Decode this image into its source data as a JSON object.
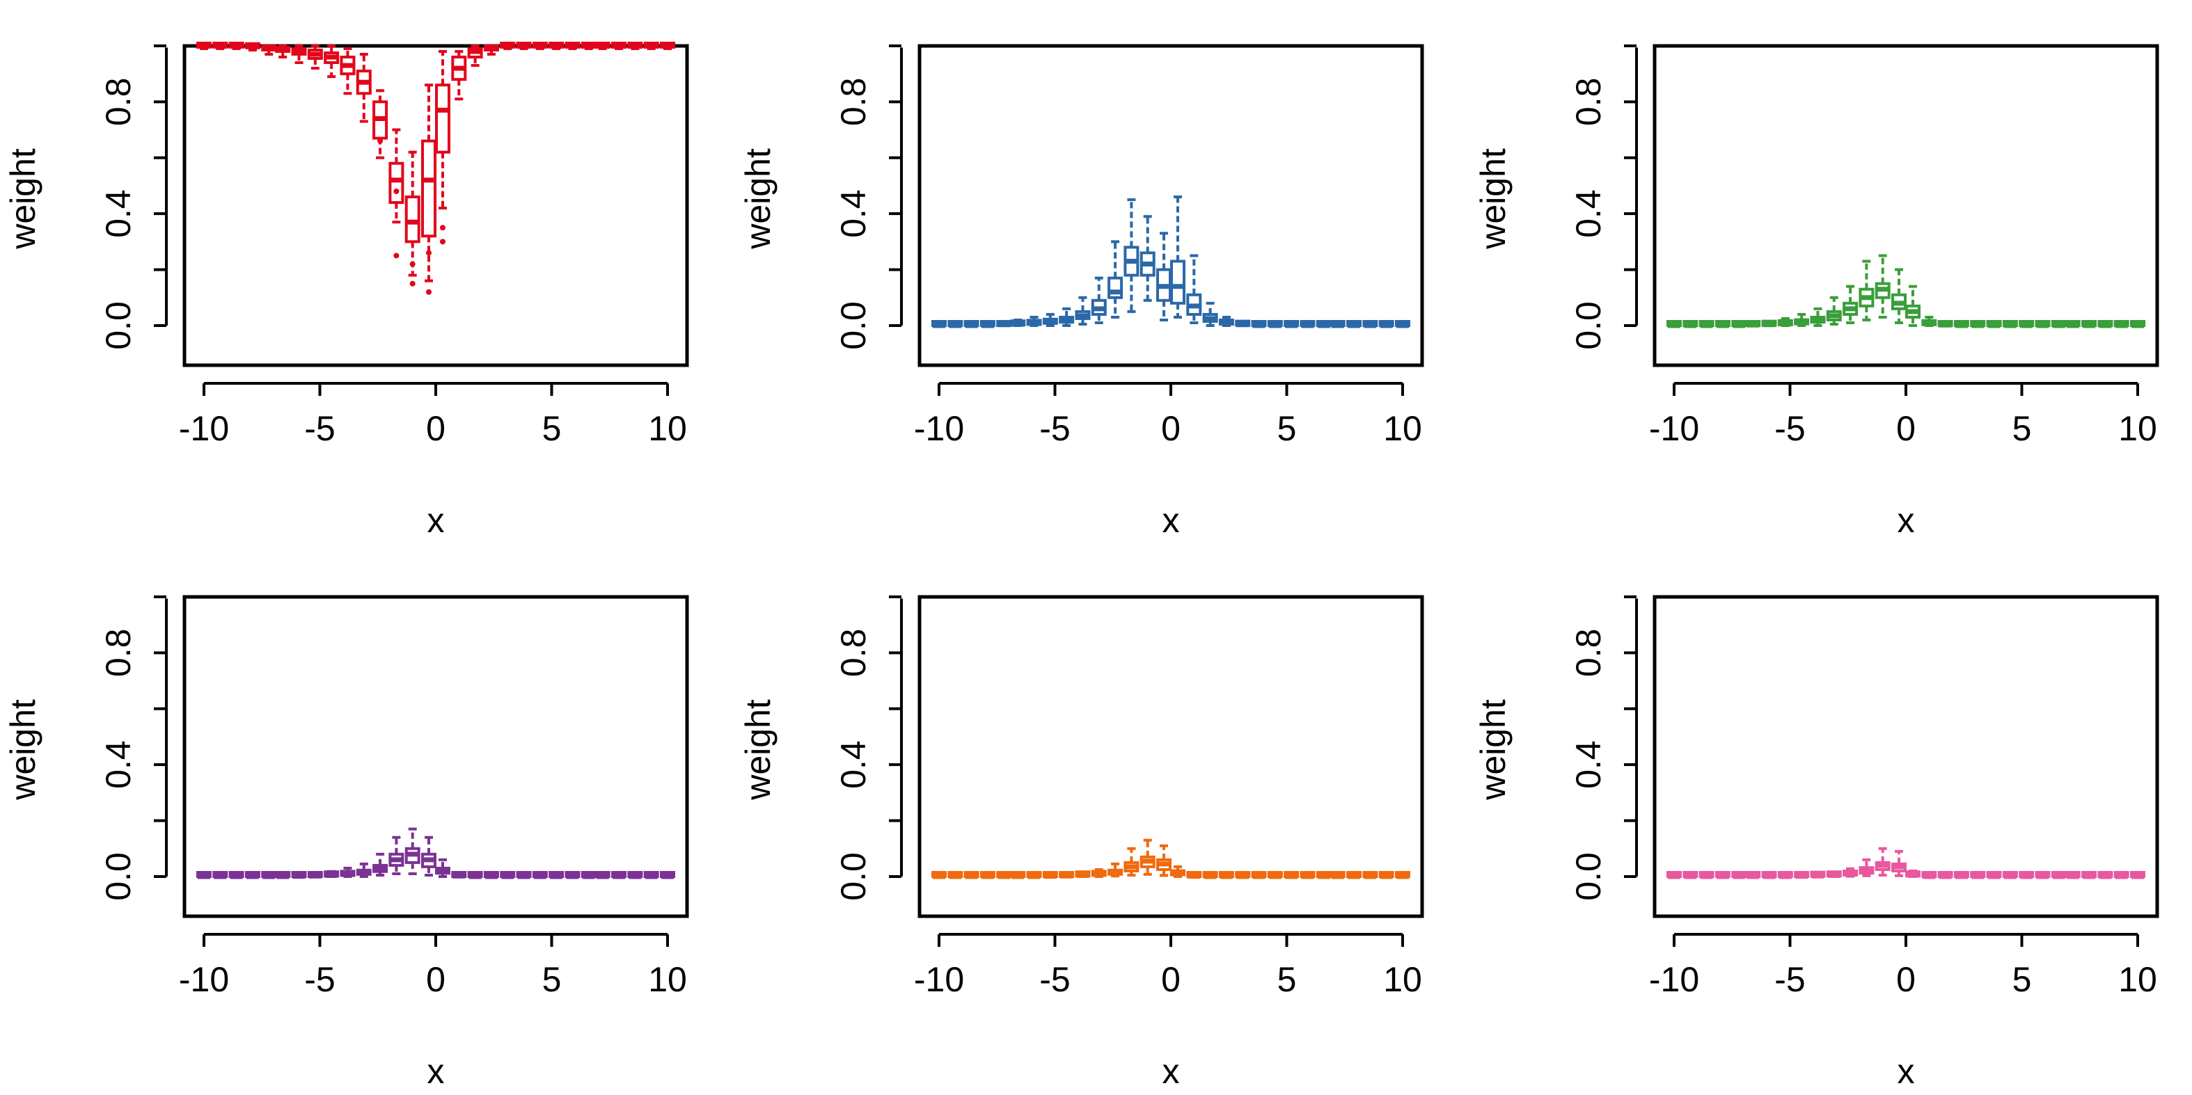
{
  "chart_data": [
    {
      "type": "boxplot",
      "color": "#E3051B",
      "xlabel": "x",
      "ylabel": "weight",
      "xlim": [
        -10,
        10
      ],
      "ylim": [
        -0.1,
        1.0
      ],
      "xticks": [
        "-10",
        "-5",
        "0",
        "5",
        "10"
      ],
      "yticks": [
        "0.0",
        "0.4",
        "0.8"
      ],
      "x": [
        -10,
        -9.3,
        -8.6,
        -7.9,
        -7.2,
        -6.6,
        -5.9,
        -5.2,
        -4.5,
        -3.8,
        -3.1,
        -2.4,
        -1.7,
        -1.0,
        -0.3,
        0.3,
        1.0,
        1.7,
        2.4,
        3.1,
        3.8,
        4.5,
        5.2,
        5.9,
        6.6,
        7.2,
        7.9,
        8.6,
        9.3,
        10
      ],
      "median": [
        1.0,
        1.0,
        1.0,
        1.0,
        0.99,
        0.99,
        0.98,
        0.97,
        0.96,
        0.93,
        0.87,
        0.74,
        0.52,
        0.37,
        0.52,
        0.77,
        0.92,
        0.98,
        0.99,
        1.0,
        1.0,
        1.0,
        1.0,
        1.0,
        1.0,
        1.0,
        1.0,
        1.0,
        1.0,
        1.0
      ],
      "q1": [
        0.995,
        0.995,
        0.995,
        0.993,
        0.985,
        0.98,
        0.97,
        0.955,
        0.94,
        0.9,
        0.83,
        0.67,
        0.44,
        0.3,
        0.32,
        0.62,
        0.88,
        0.96,
        0.985,
        0.995,
        0.995,
        0.995,
        0.995,
        0.995,
        0.995,
        0.995,
        0.995,
        0.995,
        0.995,
        0.995
      ],
      "q3": [
        1.0,
        1.0,
        1.0,
        1.0,
        0.995,
        0.995,
        0.99,
        0.985,
        0.975,
        0.96,
        0.91,
        0.8,
        0.58,
        0.46,
        0.66,
        0.86,
        0.96,
        0.99,
        0.995,
        1.0,
        1.0,
        1.0,
        1.0,
        1.0,
        1.0,
        1.0,
        1.0,
        1.0,
        1.0,
        1.0
      ],
      "lower": [
        0.99,
        0.99,
        0.99,
        0.985,
        0.97,
        0.96,
        0.94,
        0.92,
        0.89,
        0.83,
        0.73,
        0.6,
        0.37,
        0.18,
        0.16,
        0.42,
        0.81,
        0.93,
        0.97,
        0.99,
        0.99,
        0.99,
        0.99,
        0.99,
        0.99,
        0.99,
        0.99,
        0.99,
        0.99,
        0.99
      ],
      "upper": [
        1.0,
        1.0,
        1.0,
        1.0,
        1.0,
        1.0,
        1.0,
        1.0,
        1.0,
        0.99,
        0.97,
        0.84,
        0.7,
        0.62,
        0.86,
        0.98,
        0.98,
        1.0,
        1.0,
        1.0,
        1.0,
        1.0,
        1.0,
        1.0,
        1.0,
        1.0,
        1.0,
        1.0,
        1.0,
        1.0
      ],
      "outliers": [
        {
          "x": -1.7,
          "y": 0.25
        },
        {
          "x": -1.7,
          "y": 0.48
        },
        {
          "x": -1.0,
          "y": 0.15
        },
        {
          "x": -1.0,
          "y": 0.22
        },
        {
          "x": -0.3,
          "y": 0.12
        },
        {
          "x": -0.3,
          "y": 0.26
        },
        {
          "x": 0.3,
          "y": 0.3
        },
        {
          "x": 0.3,
          "y": 0.35
        },
        {
          "x": -2.4,
          "y": 0.66
        }
      ]
    },
    {
      "type": "boxplot",
      "color": "#2B68A8",
      "xlabel": "x",
      "ylabel": "weight",
      "xlim": [
        -10,
        10
      ],
      "ylim": [
        -0.1,
        1.0
      ],
      "xticks": [
        "-10",
        "-5",
        "0",
        "5",
        "10"
      ],
      "yticks": [
        "0.0",
        "0.4",
        "0.8"
      ],
      "x": [
        -10,
        -9.3,
        -8.6,
        -7.9,
        -7.2,
        -6.6,
        -5.9,
        -5.2,
        -4.5,
        -3.8,
        -3.1,
        -2.4,
        -1.7,
        -1.0,
        -0.3,
        0.3,
        1.0,
        1.7,
        2.4,
        3.1,
        3.8,
        4.5,
        5.2,
        5.9,
        6.6,
        7.2,
        7.9,
        8.6,
        9.3,
        10
      ],
      "median": [
        0.0,
        0.0,
        0.0,
        0.0,
        0.003,
        0.005,
        0.008,
        0.013,
        0.02,
        0.035,
        0.06,
        0.12,
        0.23,
        0.22,
        0.14,
        0.14,
        0.07,
        0.025,
        0.01,
        0.003,
        0.0,
        0.0,
        0.0,
        0.0,
        0.0,
        0.0,
        0.0,
        0.0,
        0.0,
        0.0
      ],
      "q1": [
        0.0,
        0.0,
        0.0,
        0.0,
        0.0,
        0.002,
        0.004,
        0.008,
        0.012,
        0.025,
        0.04,
        0.1,
        0.18,
        0.18,
        0.09,
        0.08,
        0.04,
        0.015,
        0.005,
        0.001,
        0.0,
        0.0,
        0.0,
        0.0,
        0.0,
        0.0,
        0.0,
        0.0,
        0.0,
        0.0
      ],
      "q3": [
        0.002,
        0.002,
        0.002,
        0.003,
        0.006,
        0.01,
        0.015,
        0.022,
        0.03,
        0.05,
        0.09,
        0.17,
        0.28,
        0.26,
        0.2,
        0.23,
        0.11,
        0.04,
        0.015,
        0.005,
        0.002,
        0.002,
        0.002,
        0.002,
        0.002,
        0.002,
        0.002,
        0.002,
        0.002,
        0.002
      ],
      "lower": [
        0.0,
        0.0,
        0.0,
        0.0,
        0.0,
        0.0,
        0.0,
        0.0,
        0.0,
        0.005,
        0.01,
        0.03,
        0.05,
        0.09,
        0.02,
        0.03,
        0.01,
        0.0,
        0.0,
        0.0,
        0.0,
        0.0,
        0.0,
        0.0,
        0.0,
        0.0,
        0.0,
        0.0,
        0.0,
        0.0
      ],
      "upper": [
        0.005,
        0.005,
        0.006,
        0.008,
        0.015,
        0.02,
        0.03,
        0.04,
        0.06,
        0.1,
        0.17,
        0.3,
        0.45,
        0.39,
        0.33,
        0.46,
        0.25,
        0.08,
        0.03,
        0.01,
        0.005,
        0.005,
        0.005,
        0.005,
        0.005,
        0.005,
        0.005,
        0.005,
        0.005,
        0.005
      ],
      "outliers": []
    },
    {
      "type": "boxplot",
      "color": "#3A9E3A",
      "xlabel": "x",
      "ylabel": "weight",
      "xlim": [
        -10,
        10
      ],
      "ylim": [
        -0.1,
        1.0
      ],
      "xticks": [
        "-10",
        "-5",
        "0",
        "5",
        "10"
      ],
      "yticks": [
        "0.0",
        "0.4",
        "0.8"
      ],
      "x": [
        -10,
        -9.3,
        -8.6,
        -7.9,
        -7.2,
        -6.6,
        -5.9,
        -5.2,
        -4.5,
        -3.8,
        -3.1,
        -2.4,
        -1.7,
        -1.0,
        -0.3,
        0.3,
        1.0,
        1.7,
        2.4,
        3.1,
        3.8,
        4.5,
        5.2,
        5.9,
        6.6,
        7.2,
        7.9,
        8.6,
        9.3,
        10
      ],
      "median": [
        0.0,
        0.0,
        0.0,
        0.0,
        0.0,
        0.002,
        0.003,
        0.006,
        0.01,
        0.02,
        0.035,
        0.06,
        0.1,
        0.13,
        0.08,
        0.05,
        0.007,
        0.002,
        0.0,
        0.0,
        0.0,
        0.0,
        0.0,
        0.0,
        0.0,
        0.0,
        0.0,
        0.0,
        0.0,
        0.0
      ],
      "q1": [
        0.0,
        0.0,
        0.0,
        0.0,
        0.0,
        0.0,
        0.001,
        0.003,
        0.006,
        0.012,
        0.02,
        0.04,
        0.07,
        0.1,
        0.06,
        0.03,
        0.003,
        0.0,
        0.0,
        0.0,
        0.0,
        0.0,
        0.0,
        0.0,
        0.0,
        0.0,
        0.0,
        0.0,
        0.0,
        0.0
      ],
      "q3": [
        0.002,
        0.002,
        0.002,
        0.002,
        0.003,
        0.004,
        0.006,
        0.01,
        0.015,
        0.03,
        0.05,
        0.08,
        0.13,
        0.15,
        0.11,
        0.07,
        0.012,
        0.004,
        0.002,
        0.002,
        0.002,
        0.002,
        0.002,
        0.002,
        0.002,
        0.002,
        0.002,
        0.002,
        0.002,
        0.002
      ],
      "lower": [
        0.0,
        0.0,
        0.0,
        0.0,
        0.0,
        0.0,
        0.0,
        0.0,
        0.0,
        0.0,
        0.005,
        0.01,
        0.02,
        0.03,
        0.01,
        0.0,
        0.0,
        0.0,
        0.0,
        0.0,
        0.0,
        0.0,
        0.0,
        0.0,
        0.0,
        0.0,
        0.0,
        0.0,
        0.0,
        0.0
      ],
      "upper": [
        0.004,
        0.004,
        0.004,
        0.005,
        0.007,
        0.01,
        0.015,
        0.025,
        0.04,
        0.06,
        0.1,
        0.14,
        0.23,
        0.25,
        0.2,
        0.14,
        0.03,
        0.008,
        0.004,
        0.004,
        0.004,
        0.004,
        0.004,
        0.004,
        0.004,
        0.004,
        0.004,
        0.004,
        0.004,
        0.004
      ],
      "outliers": []
    },
    {
      "type": "boxplot",
      "color": "#7B3294",
      "xlabel": "x",
      "ylabel": "weight",
      "xlim": [
        -10,
        10
      ],
      "ylim": [
        -0.1,
        1.0
      ],
      "xticks": [
        "-10",
        "-5",
        "0",
        "5",
        "10"
      ],
      "yticks": [
        "0.0",
        "0.4",
        "0.8"
      ],
      "x": [
        -10,
        -9.3,
        -8.6,
        -7.9,
        -7.2,
        -6.6,
        -5.9,
        -5.2,
        -4.5,
        -3.8,
        -3.1,
        -2.4,
        -1.7,
        -1.0,
        -0.3,
        0.3,
        1.0,
        1.7,
        2.4,
        3.1,
        3.8,
        4.5,
        5.2,
        5.9,
        6.6,
        7.2,
        7.9,
        8.6,
        9.3,
        10
      ],
      "median": [
        0.0,
        0.0,
        0.0,
        0.0,
        0.0,
        0.0,
        0.001,
        0.002,
        0.004,
        0.008,
        0.015,
        0.03,
        0.06,
        0.08,
        0.06,
        0.02,
        0.002,
        0.0,
        0.0,
        0.0,
        0.0,
        0.0,
        0.0,
        0.0,
        0.0,
        0.0,
        0.0,
        0.0,
        0.0,
        0.0
      ],
      "q1": [
        0.0,
        0.0,
        0.0,
        0.0,
        0.0,
        0.0,
        0.0,
        0.0,
        0.002,
        0.004,
        0.008,
        0.018,
        0.04,
        0.05,
        0.035,
        0.012,
        0.0,
        0.0,
        0.0,
        0.0,
        0.0,
        0.0,
        0.0,
        0.0,
        0.0,
        0.0,
        0.0,
        0.0,
        0.0,
        0.0
      ],
      "q3": [
        0.001,
        0.001,
        0.001,
        0.001,
        0.001,
        0.002,
        0.003,
        0.005,
        0.007,
        0.013,
        0.022,
        0.04,
        0.08,
        0.1,
        0.08,
        0.03,
        0.004,
        0.001,
        0.001,
        0.001,
        0.001,
        0.001,
        0.001,
        0.001,
        0.001,
        0.001,
        0.001,
        0.001,
        0.001,
        0.001
      ],
      "lower": [
        0.0,
        0.0,
        0.0,
        0.0,
        0.0,
        0.0,
        0.0,
        0.0,
        0.0,
        0.0,
        0.0,
        0.005,
        0.01,
        0.01,
        0.005,
        0.0,
        0.0,
        0.0,
        0.0,
        0.0,
        0.0,
        0.0,
        0.0,
        0.0,
        0.0,
        0.0,
        0.0,
        0.0,
        0.0,
        0.0
      ],
      "upper": [
        0.003,
        0.003,
        0.003,
        0.003,
        0.004,
        0.005,
        0.008,
        0.012,
        0.018,
        0.03,
        0.045,
        0.08,
        0.14,
        0.17,
        0.14,
        0.06,
        0.01,
        0.003,
        0.003,
        0.003,
        0.003,
        0.003,
        0.003,
        0.003,
        0.003,
        0.003,
        0.003,
        0.003,
        0.003,
        0.003
      ],
      "outliers": []
    },
    {
      "type": "boxplot",
      "color": "#F06A0E",
      "xlabel": "x",
      "ylabel": "weight",
      "xlim": [
        -10,
        10
      ],
      "ylim": [
        -0.1,
        1.0
      ],
      "xticks": [
        "-10",
        "-5",
        "0",
        "5",
        "10"
      ],
      "yticks": [
        "0.0",
        "0.4",
        "0.8"
      ],
      "x": [
        -10,
        -9.3,
        -8.6,
        -7.9,
        -7.2,
        -6.6,
        -5.9,
        -5.2,
        -4.5,
        -3.8,
        -3.1,
        -2.4,
        -1.7,
        -1.0,
        -0.3,
        0.3,
        1.0,
        1.7,
        2.4,
        3.1,
        3.8,
        4.5,
        5.2,
        5.9,
        6.6,
        7.2,
        7.9,
        8.6,
        9.3,
        10
      ],
      "median": [
        0.0,
        0.0,
        0.0,
        0.0,
        0.0,
        0.0,
        0.0,
        0.001,
        0.002,
        0.004,
        0.008,
        0.015,
        0.035,
        0.055,
        0.045,
        0.012,
        0.001,
        0.0,
        0.0,
        0.0,
        0.0,
        0.0,
        0.0,
        0.0,
        0.0,
        0.0,
        0.0,
        0.0,
        0.0,
        0.0
      ],
      "q1": [
        0.0,
        0.0,
        0.0,
        0.0,
        0.0,
        0.0,
        0.0,
        0.0,
        0.0,
        0.002,
        0.004,
        0.008,
        0.02,
        0.035,
        0.025,
        0.006,
        0.0,
        0.0,
        0.0,
        0.0,
        0.0,
        0.0,
        0.0,
        0.0,
        0.0,
        0.0,
        0.0,
        0.0,
        0.0,
        0.0
      ],
      "q3": [
        0.001,
        0.001,
        0.001,
        0.001,
        0.001,
        0.001,
        0.002,
        0.003,
        0.004,
        0.007,
        0.012,
        0.022,
        0.05,
        0.07,
        0.06,
        0.02,
        0.003,
        0.001,
        0.001,
        0.001,
        0.001,
        0.001,
        0.001,
        0.001,
        0.001,
        0.001,
        0.001,
        0.001,
        0.001,
        0.001
      ],
      "lower": [
        0.0,
        0.0,
        0.0,
        0.0,
        0.0,
        0.0,
        0.0,
        0.0,
        0.0,
        0.0,
        0.0,
        0.002,
        0.005,
        0.008,
        0.004,
        0.0,
        0.0,
        0.0,
        0.0,
        0.0,
        0.0,
        0.0,
        0.0,
        0.0,
        0.0,
        0.0,
        0.0,
        0.0,
        0.0,
        0.0
      ],
      "upper": [
        0.002,
        0.002,
        0.002,
        0.002,
        0.003,
        0.003,
        0.005,
        0.007,
        0.01,
        0.016,
        0.025,
        0.045,
        0.1,
        0.13,
        0.11,
        0.035,
        0.006,
        0.002,
        0.002,
        0.002,
        0.002,
        0.002,
        0.002,
        0.002,
        0.002,
        0.002,
        0.002,
        0.002,
        0.002,
        0.002
      ],
      "outliers": []
    },
    {
      "type": "boxplot",
      "color": "#E8589F",
      "xlabel": "x",
      "ylabel": "weight",
      "xlim": [
        -10,
        10
      ],
      "ylim": [
        -0.1,
        1.0
      ],
      "xticks": [
        "-10",
        "-5",
        "0",
        "5",
        "10"
      ],
      "yticks": [
        "0.0",
        "0.4",
        "0.8"
      ],
      "x": [
        -10,
        -9.3,
        -8.6,
        -7.9,
        -7.2,
        -6.6,
        -5.9,
        -5.2,
        -4.5,
        -3.8,
        -3.1,
        -2.4,
        -1.7,
        -1.0,
        -0.3,
        0.3,
        1.0,
        1.7,
        2.4,
        3.1,
        3.8,
        4.5,
        5.2,
        5.9,
        6.6,
        7.2,
        7.9,
        8.6,
        9.3,
        10
      ],
      "median": [
        0.0,
        0.0,
        0.0,
        0.0,
        0.0,
        0.0,
        0.0,
        0.0,
        0.001,
        0.002,
        0.004,
        0.01,
        0.022,
        0.04,
        0.035,
        0.005,
        0.0,
        0.0,
        0.0,
        0.0,
        0.0,
        0.0,
        0.0,
        0.0,
        0.0,
        0.0,
        0.0,
        0.0,
        0.0,
        0.0
      ],
      "q1": [
        0.0,
        0.0,
        0.0,
        0.0,
        0.0,
        0.0,
        0.0,
        0.0,
        0.0,
        0.001,
        0.002,
        0.005,
        0.012,
        0.025,
        0.02,
        0.002,
        0.0,
        0.0,
        0.0,
        0.0,
        0.0,
        0.0,
        0.0,
        0.0,
        0.0,
        0.0,
        0.0,
        0.0,
        0.0,
        0.0
      ],
      "q3": [
        0.001,
        0.001,
        0.001,
        0.001,
        0.001,
        0.001,
        0.001,
        0.002,
        0.003,
        0.004,
        0.007,
        0.015,
        0.032,
        0.05,
        0.045,
        0.01,
        0.002,
        0.001,
        0.001,
        0.001,
        0.001,
        0.001,
        0.001,
        0.001,
        0.001,
        0.001,
        0.001,
        0.001,
        0.001,
        0.001
      ],
      "lower": [
        0.0,
        0.0,
        0.0,
        0.0,
        0.0,
        0.0,
        0.0,
        0.0,
        0.0,
        0.0,
        0.0,
        0.001,
        0.003,
        0.005,
        0.003,
        0.0,
        0.0,
        0.0,
        0.0,
        0.0,
        0.0,
        0.0,
        0.0,
        0.0,
        0.0,
        0.0,
        0.0,
        0.0,
        0.0,
        0.0
      ],
      "upper": [
        0.002,
        0.002,
        0.002,
        0.002,
        0.002,
        0.002,
        0.003,
        0.004,
        0.006,
        0.009,
        0.014,
        0.028,
        0.06,
        0.1,
        0.09,
        0.02,
        0.004,
        0.002,
        0.002,
        0.002,
        0.002,
        0.002,
        0.002,
        0.002,
        0.002,
        0.002,
        0.002,
        0.002,
        0.002,
        0.002
      ],
      "outliers": []
    }
  ]
}
